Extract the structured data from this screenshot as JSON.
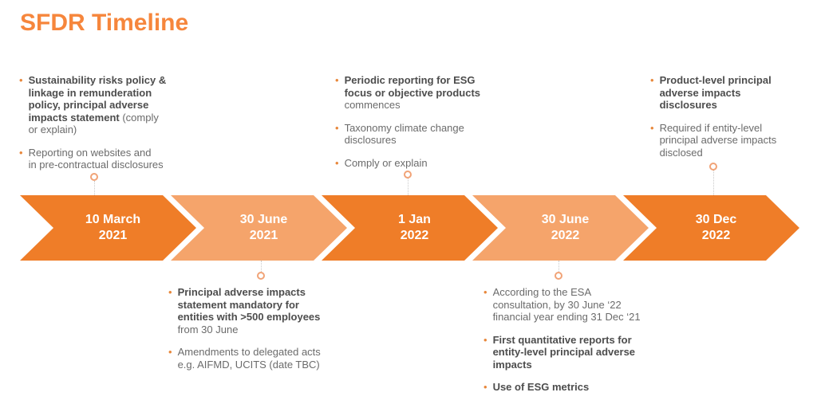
{
  "title": "SFDR Timeline",
  "icons": {
    "bullet": "•"
  },
  "colors": {
    "title_orange": "#F6863C",
    "chevron_dark": "#EF7D28",
    "chevron_light": "#F5A46B",
    "bullet_orange": "#E8883C",
    "text_regular": "#6B6B6B",
    "text_bold": "#4D4D4D",
    "connector_ring": "#F1A377",
    "connector_dash": "#C9C9C9"
  },
  "notes": [
    {
      "id": "top-left",
      "items": [
        {
          "bold": "Sustainability risks policy &\nlinkage in remunderation\npolicy, principal adverse\nimpacts statement",
          "regular": " (comply\nor explain)"
        },
        {
          "regular": "Reporting on websites and\nin pre-contractual disclosures"
        }
      ]
    },
    {
      "id": "top-middle",
      "items": [
        {
          "bold": "Periodic reporting for ESG\nfocus or objective products",
          "regular": "\ncommences"
        },
        {
          "regular": "Taxonomy climate change\ndisclosures"
        },
        {
          "regular": "Comply or explain"
        }
      ]
    },
    {
      "id": "top-right",
      "items": [
        {
          "bold": "Product-level principal\nadverse impacts\ndisclosures"
        },
        {
          "regular": "Required if entity-level\nprincipal adverse impacts\ndisclosed"
        }
      ]
    },
    {
      "id": "bottom-left",
      "items": [
        {
          "bold": "Principal adverse impacts\nstatement mandatory for\nentities with >500 employees",
          "regular": "\nfrom 30 June"
        },
        {
          "regular": "Amendments to delegated acts\ne.g. AIFMD, UCITS (date TBC)"
        }
      ]
    },
    {
      "id": "bottom-right",
      "items": [
        {
          "regular": "According to the ESA\nconsultation, by 30 June ‘22\nfinancial year ending 31 Dec ‘21"
        },
        {
          "bold": "First quantitative reports for\nentity-level principal adverse\nimpacts"
        },
        {
          "bold": "Use of ESG metrics"
        }
      ]
    }
  ],
  "timeline": {
    "milestones": [
      {
        "line1": "10 March",
        "line2": "2021",
        "shade": "dark"
      },
      {
        "line1": "30 June",
        "line2": "2021",
        "shade": "light"
      },
      {
        "line1": "1 Jan",
        "line2": "2022",
        "shade": "dark"
      },
      {
        "line1": "30 June",
        "line2": "2022",
        "shade": "light"
      },
      {
        "line1": "30 Dec",
        "line2": "2022",
        "shade": "dark"
      }
    ]
  }
}
